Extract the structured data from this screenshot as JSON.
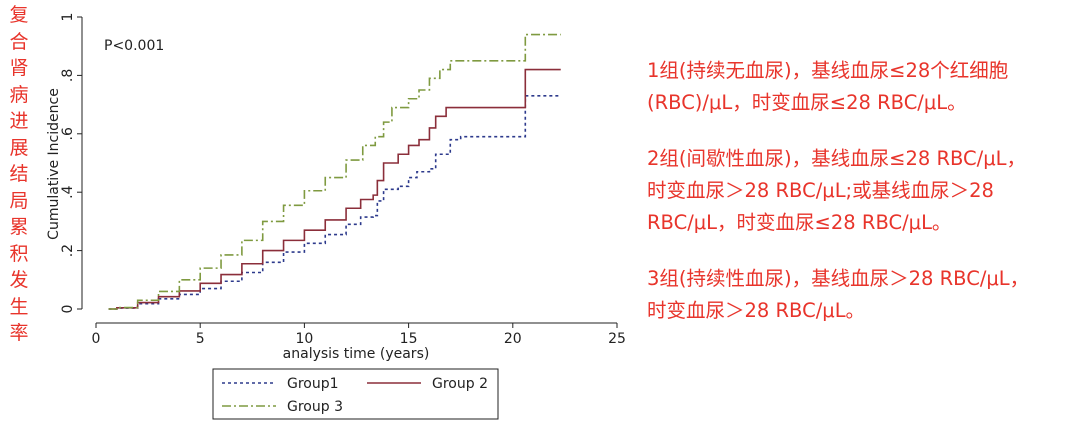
{
  "side_title_chars": [
    "复",
    "合",
    "肾",
    "病",
    "进",
    "展",
    "结",
    "局",
    "累",
    "积",
    "发",
    "生",
    "率"
  ],
  "notes": [
    "1组(持续无血尿)，基线血尿≤28个红细胞\n(RBC)/μL，时变血尿≤28 RBC/μL。",
    "2组(间歇性血尿)，基线血尿≤28 RBC/μL，\n时变血尿＞28 RBC/μL;或基线血尿＞28\nRBC/μL，时变血尿≤28 RBC/μL。",
    "3组(持续性血尿)，基线血尿＞28 RBC/μL，\n时变血尿＞28 RBC/μL。"
  ],
  "chart_data": {
    "type": "line",
    "title": "",
    "annotation": "P<0.001",
    "xlabel": "analysis time (years)",
    "ylabel": "Cumulative Incidence",
    "xlim": [
      0,
      25
    ],
    "ylim": [
      0,
      1
    ],
    "x_ticks": [
      0,
      5,
      10,
      15,
      20,
      25
    ],
    "y_ticks": [
      0,
      0.2,
      0.4,
      0.6,
      0.8,
      1
    ],
    "y_tick_labels": [
      "0",
      ".2",
      ".4",
      ".6",
      ".8",
      "1"
    ],
    "grid": false,
    "legend_position": "bottom",
    "series": [
      {
        "name": "Group1",
        "color": "#2d3a8c",
        "dash": "dotted",
        "points": [
          [
            0.6,
            0
          ],
          [
            1,
            0.003
          ],
          [
            2,
            0.018
          ],
          [
            3,
            0.035
          ],
          [
            4,
            0.05
          ],
          [
            5,
            0.07
          ],
          [
            6,
            0.095
          ],
          [
            7,
            0.125
          ],
          [
            8,
            0.16
          ],
          [
            9,
            0.195
          ],
          [
            10,
            0.225
          ],
          [
            11,
            0.255
          ],
          [
            12,
            0.29
          ],
          [
            12.7,
            0.315
          ],
          [
            13.3,
            0.32
          ],
          [
            13.5,
            0.37
          ],
          [
            13.8,
            0.41
          ],
          [
            14.5,
            0.42
          ],
          [
            15,
            0.45
          ],
          [
            15.4,
            0.47
          ],
          [
            16,
            0.48
          ],
          [
            16.3,
            0.53
          ],
          [
            17,
            0.58
          ],
          [
            17.5,
            0.59
          ],
          [
            20.5,
            0.59
          ],
          [
            20.6,
            0.73
          ],
          [
            22.3,
            0.73
          ]
        ]
      },
      {
        "name": "Group 2",
        "color": "#8b2e3a",
        "dash": "solid",
        "points": [
          [
            0.6,
            0
          ],
          [
            1,
            0.004
          ],
          [
            2,
            0.022
          ],
          [
            3,
            0.042
          ],
          [
            4,
            0.062
          ],
          [
            5,
            0.088
          ],
          [
            6,
            0.118
          ],
          [
            7,
            0.155
          ],
          [
            8,
            0.2
          ],
          [
            9,
            0.235
          ],
          [
            10,
            0.27
          ],
          [
            11,
            0.305
          ],
          [
            12,
            0.345
          ],
          [
            12.7,
            0.375
          ],
          [
            13.3,
            0.39
          ],
          [
            13.5,
            0.44
          ],
          [
            13.8,
            0.5
          ],
          [
            14.5,
            0.53
          ],
          [
            15,
            0.56
          ],
          [
            15.5,
            0.58
          ],
          [
            16,
            0.62
          ],
          [
            16.3,
            0.66
          ],
          [
            16.8,
            0.69
          ],
          [
            20.5,
            0.69
          ],
          [
            20.6,
            0.82
          ],
          [
            22.3,
            0.82
          ]
        ]
      },
      {
        "name": "Group 3",
        "color": "#7f9a40",
        "dash": "dash-dot",
        "points": [
          [
            0.6,
            0
          ],
          [
            1,
            0.005
          ],
          [
            2,
            0.03
          ],
          [
            3,
            0.06
          ],
          [
            4,
            0.1
          ],
          [
            5,
            0.14
          ],
          [
            6,
            0.185
          ],
          [
            7,
            0.235
          ],
          [
            8,
            0.3
          ],
          [
            9,
            0.355
          ],
          [
            10,
            0.405
          ],
          [
            11,
            0.45
          ],
          [
            12,
            0.51
          ],
          [
            12.8,
            0.56
          ],
          [
            13.4,
            0.59
          ],
          [
            13.8,
            0.64
          ],
          [
            14.2,
            0.69
          ],
          [
            15,
            0.72
          ],
          [
            15.5,
            0.75
          ],
          [
            16,
            0.79
          ],
          [
            16.5,
            0.82
          ],
          [
            17,
            0.85
          ],
          [
            20.5,
            0.85
          ],
          [
            20.6,
            0.94
          ],
          [
            22.3,
            0.94
          ]
        ]
      }
    ]
  }
}
